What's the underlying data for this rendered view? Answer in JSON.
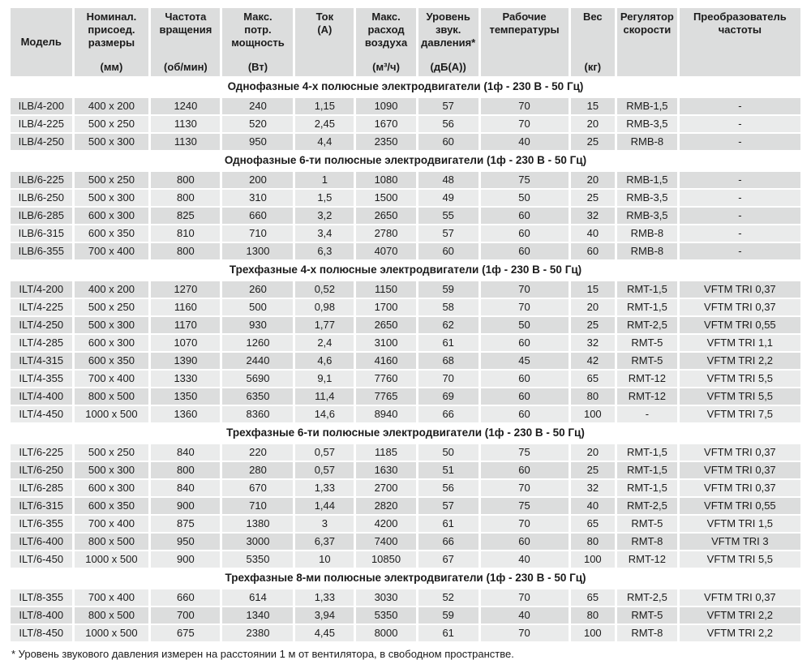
{
  "table": {
    "columns": [
      {
        "id": "model",
        "lines": [
          "Модель"
        ],
        "unit": ""
      },
      {
        "id": "dims",
        "lines": [
          "Номинал.",
          "присоед.",
          "размеры"
        ],
        "unit": "(мм)"
      },
      {
        "id": "rpm",
        "lines": [
          "Частота",
          "вращения"
        ],
        "unit": "(об/мин)"
      },
      {
        "id": "power",
        "lines": [
          "Макс.",
          "потр.",
          "мощность"
        ],
        "unit": "(Вт)"
      },
      {
        "id": "current",
        "lines": [
          "Ток",
          "(А)"
        ],
        "unit": ""
      },
      {
        "id": "airflow",
        "lines": [
          "Макс.",
          "расход",
          "воздуха"
        ],
        "unit": "(м³/ч)"
      },
      {
        "id": "noise",
        "lines": [
          "Уровень",
          "звук.",
          "давления*"
        ],
        "unit": "(дБ(А))"
      },
      {
        "id": "temp",
        "lines": [
          "Рабочие",
          "температуры"
        ],
        "unit": ""
      },
      {
        "id": "weight",
        "lines": [
          "Вес"
        ],
        "unit": "(кг)"
      },
      {
        "id": "regulator",
        "lines": [
          "Регулятор",
          "скорости"
        ],
        "unit": ""
      },
      {
        "id": "converter",
        "lines": [
          "Преобразователь",
          "частоты"
        ],
        "unit": ""
      }
    ],
    "sections": [
      {
        "title": "Однофазные 4-х полюсные электродвигатели (1ф - 230 В - 50 Гц)",
        "rows": [
          [
            "ILB/4-200",
            "400 x 200",
            "1240",
            "240",
            "1,15",
            "1090",
            "57",
            "70",
            "15",
            "RMB-1,5",
            "-"
          ],
          [
            "ILB/4-225",
            "500 x 250",
            "1130",
            "520",
            "2,45",
            "1670",
            "56",
            "70",
            "20",
            "RMB-3,5",
            "-"
          ],
          [
            "ILB/4-250",
            "500 x 300",
            "1130",
            "950",
            "4,4",
            "2350",
            "60",
            "40",
            "25",
            "RMB-8",
            "-"
          ]
        ]
      },
      {
        "title": "Однофазные 6-ти полюсные электродвигатели (1ф - 230 В - 50 Гц)",
        "rows": [
          [
            "ILB/6-225",
            "500 x 250",
            "800",
            "200",
            "1",
            "1080",
            "48",
            "75",
            "20",
            "RMB-1,5",
            "-"
          ],
          [
            "ILB/6-250",
            "500 x 300",
            "800",
            "310",
            "1,5",
            "1500",
            "49",
            "50",
            "25",
            "RMB-3,5",
            "-"
          ],
          [
            "ILB/6-285",
            "600 x 300",
            "825",
            "660",
            "3,2",
            "2650",
            "55",
            "60",
            "32",
            "RMB-3,5",
            "-"
          ],
          [
            "ILB/6-315",
            "600 x 350",
            "810",
            "710",
            "3,4",
            "2780",
            "57",
            "60",
            "40",
            "RMB-8",
            "-"
          ],
          [
            "ILB/6-355",
            "700 x 400",
            "800",
            "1300",
            "6,3",
            "4070",
            "60",
            "60",
            "60",
            "RMB-8",
            "-"
          ]
        ]
      },
      {
        "title": "Трехфазные 4-х полюсные электродвигатели (1ф - 230 В - 50 Гц)",
        "rows": [
          [
            "ILT/4-200",
            "400 x 200",
            "1270",
            "260",
            "0,52",
            "1150",
            "59",
            "70",
            "15",
            "RMT-1,5",
            "VFTM TRI 0,37"
          ],
          [
            "ILT/4-225",
            "500 x 250",
            "1160",
            "500",
            "0,98",
            "1700",
            "58",
            "70",
            "20",
            "RMT-1,5",
            "VFTM TRI 0,37"
          ],
          [
            "ILT/4-250",
            "500 x 300",
            "1170",
            "930",
            "1,77",
            "2650",
            "62",
            "50",
            "25",
            "RMT-2,5",
            "VFTM TRI 0,55"
          ],
          [
            "ILT/4-285",
            "600 x 300",
            "1070",
            "1260",
            "2,4",
            "3100",
            "61",
            "60",
            "32",
            "RMT-5",
            "VFTM TRI 1,1"
          ],
          [
            "ILT/4-315",
            "600 x 350",
            "1390",
            "2440",
            "4,6",
            "4160",
            "68",
            "45",
            "42",
            "RMT-5",
            "VFTM TRI 2,2"
          ],
          [
            "ILT/4-355",
            "700 x 400",
            "1330",
            "5690",
            "9,1",
            "7760",
            "70",
            "60",
            "65",
            "RMT-12",
            "VFTM TRI 5,5"
          ],
          [
            "ILT/4-400",
            "800 x 500",
            "1350",
            "6350",
            "11,4",
            "7765",
            "69",
            "60",
            "80",
            "RMT-12",
            "VFTM TRI 5,5"
          ],
          [
            "ILT/4-450",
            "1000 x 500",
            "1360",
            "8360",
            "14,6",
            "8940",
            "66",
            "60",
            "100",
            "-",
            "VFTM TRI 7,5"
          ]
        ]
      },
      {
        "title": "Трехфазные 6-ти полюсные электродвигатели (1ф - 230 В - 50 Гц)",
        "rows": [
          [
            "ILT/6-225",
            "500 x 250",
            "840",
            "220",
            "0,57",
            "1185",
            "50",
            "75",
            "20",
            "RMT-1,5",
            "VFTM TRI 0,37"
          ],
          [
            "ILT/6-250",
            "500 x 300",
            "800",
            "280",
            "0,57",
            "1630",
            "51",
            "60",
            "25",
            "RMT-1,5",
            "VFTM TRI 0,37"
          ],
          [
            "ILT/6-285",
            "600 x 300",
            "840",
            "670",
            "1,33",
            "2700",
            "56",
            "70",
            "32",
            "RMT-1,5",
            "VFTM TRI 0,37"
          ],
          [
            "ILT/6-315",
            "600 x 350",
            "900",
            "710",
            "1,44",
            "2820",
            "57",
            "75",
            "40",
            "RMT-2,5",
            "VFTM TRI 0,55"
          ],
          [
            "ILT/6-355",
            "700 x 400",
            "875",
            "1380",
            "3",
            "4200",
            "61",
            "70",
            "65",
            "RMT-5",
            "VFTM TRI 1,5"
          ],
          [
            "ILT/6-400",
            "800 x 500",
            "950",
            "3000",
            "6,37",
            "7400",
            "66",
            "60",
            "80",
            "RMT-8",
            "VFTM TRI 3"
          ],
          [
            "ILT/6-450",
            "1000 x 500",
            "900",
            "5350",
            "10",
            "10850",
            "67",
            "40",
            "100",
            "RMT-12",
            "VFTM TRI 5,5"
          ]
        ]
      },
      {
        "title": "Трехфазные 8-ми полюсные электродвигатели (1ф - 230 В - 50 Гц)",
        "rows": [
          [
            "ILT/8-355",
            "700 x 400",
            "660",
            "614",
            "1,33",
            "3030",
            "52",
            "70",
            "65",
            "RMT-2,5",
            "VFTM TRI 0,37"
          ],
          [
            "ILT/8-400",
            "800 x 500",
            "700",
            "1340",
            "3,94",
            "5350",
            "59",
            "40",
            "80",
            "RMT-5",
            "VFTM TRI 2,2"
          ],
          [
            "ILT/8-450",
            "1000 x 500",
            "675",
            "2380",
            "4,45",
            "8000",
            "61",
            "70",
            "100",
            "RMT-8",
            "VFTM TRI 2,2"
          ]
        ]
      }
    ],
    "footnote": "* Уровень звукового давления измерен на расстоянии 1 м от вентилятора, в свободном пространстве.",
    "colors": {
      "cell_dark": "#dcdddd",
      "cell_light": "#eaebeb",
      "header_bg": "#dcdddd",
      "text": "#1b1b1b"
    }
  }
}
